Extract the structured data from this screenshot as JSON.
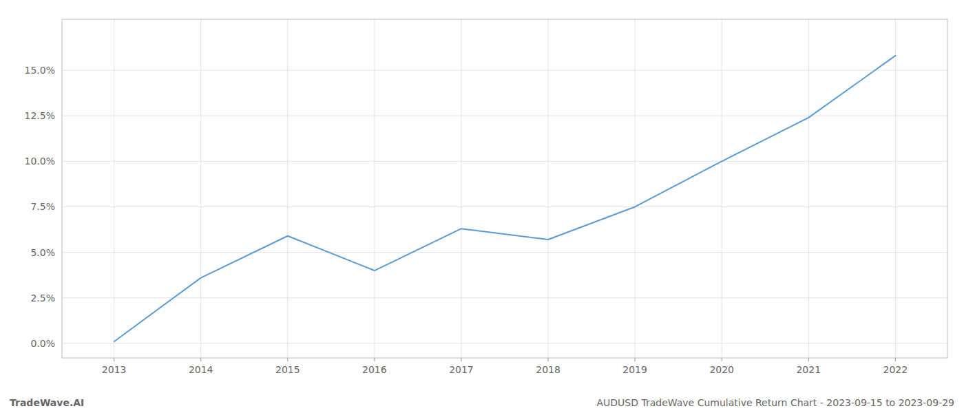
{
  "chart_data": {
    "type": "line",
    "x": [
      2013,
      2014,
      2015,
      2016,
      2017,
      2018,
      2019,
      2020,
      2021,
      2022
    ],
    "values": [
      0.001,
      0.036,
      0.059,
      0.04,
      0.063,
      0.057,
      0.075,
      0.1,
      0.124,
      0.158
    ],
    "color": "#5b9bd5",
    "xlim": [
      2012.4,
      2022.6
    ],
    "ylim": [
      -0.008,
      0.178
    ],
    "xticks": [
      2013,
      2014,
      2015,
      2016,
      2017,
      2018,
      2019,
      2020,
      2021,
      2022
    ],
    "yticks": [
      {
        "value": 0.0,
        "label": "0.0%"
      },
      {
        "value": 0.025,
        "label": "2.5%"
      },
      {
        "value": 0.05,
        "label": "5.0%"
      },
      {
        "value": 0.075,
        "label": "7.5%"
      },
      {
        "value": 0.1,
        "label": "10.0%"
      },
      {
        "value": 0.125,
        "label": "12.5%"
      },
      {
        "value": 0.15,
        "label": "15.0%"
      }
    ],
    "grid": true,
    "annotations": [
      "TradeWave.AI",
      "AUDUSD TradeWave Cumulative Return Chart - 2023-09-15 to 2023-09-29"
    ]
  }
}
